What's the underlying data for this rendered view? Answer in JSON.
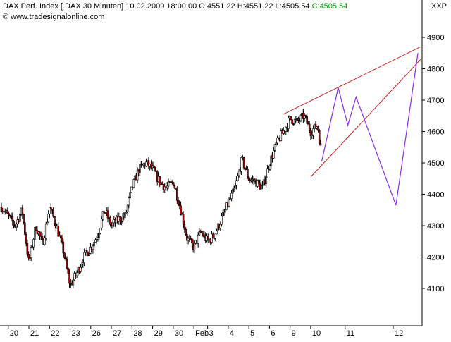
{
  "header": {
    "symbol": "DAX Perf. Index [.DAX",
    "interval": "30 Minuten]",
    "datetime": "10.02.2009 18:00:00",
    "open_label": "O:",
    "open": "4551.22",
    "high_label": "H:",
    "high": "4551.22",
    "low_label": "L:",
    "low": "4505.54",
    "close_label": "C:",
    "close": "4505.54",
    "copyright_symbol": "©",
    "website": "www.tradesignalonline.com",
    "corner_label": "XXP"
  },
  "colors": {
    "candle_up": "#000000",
    "candle_down": "#c00000",
    "trendline": "#d02020",
    "projection": "#8a2be2",
    "close_value": "#00a000"
  },
  "chart_data": {
    "type": "candlestick",
    "title": "DAX Perf. Index [.DAX 30 Minuten]",
    "ylim": [
      4000,
      4950
    ],
    "y_ticks": [
      4100,
      4200,
      4300,
      4400,
      4500,
      4600,
      4700,
      4800,
      4900
    ],
    "x_ticks": [
      "20",
      "21",
      "22",
      "23",
      "26",
      "27",
      "28",
      "29",
      "30",
      "Feb",
      "3",
      "4",
      "5",
      "6",
      "9",
      "10",
      "11",
      "12"
    ],
    "x_tick_positions": [
      0.5,
      2,
      3.5,
      5,
      6.5,
      8,
      9.5,
      11,
      12.5,
      14,
      15,
      16.5,
      18,
      19.5,
      21,
      22.5,
      25,
      28.5
    ],
    "x_range": [
      0,
      30.5
    ],
    "anchors": [
      [
        0,
        4360
      ],
      [
        0.5,
        4330
      ],
      [
        1,
        4300
      ],
      [
        1.5,
        4350
      ],
      [
        2,
        4180
      ],
      [
        2.5,
        4300
      ],
      [
        3,
        4240
      ],
      [
        3.5,
        4360
      ],
      [
        4,
        4300
      ],
      [
        4.5,
        4220
      ],
      [
        5,
        4110
      ],
      [
        5.5,
        4150
      ],
      [
        6,
        4200
      ],
      [
        6.5,
        4230
      ],
      [
        7,
        4270
      ],
      [
        7.5,
        4350
      ],
      [
        8,
        4300
      ],
      [
        8.5,
        4320
      ],
      [
        9,
        4330
      ],
      [
        9.5,
        4420
      ],
      [
        10,
        4480
      ],
      [
        10.5,
        4500
      ],
      [
        11,
        4480
      ],
      [
        11.5,
        4440
      ],
      [
        12,
        4420
      ],
      [
        12.5,
        4440
      ],
      [
        13,
        4360
      ],
      [
        13.5,
        4260
      ],
      [
        14,
        4230
      ],
      [
        14.5,
        4280
      ],
      [
        15,
        4250
      ],
      [
        15.5,
        4270
      ],
      [
        16,
        4320
      ],
      [
        16.5,
        4370
      ],
      [
        17,
        4420
      ],
      [
        17.5,
        4510
      ],
      [
        18,
        4450
      ],
      [
        18.5,
        4440
      ],
      [
        19,
        4420
      ],
      [
        19.5,
        4500
      ],
      [
        20,
        4560
      ],
      [
        20.5,
        4600
      ],
      [
        21,
        4640
      ],
      [
        21.5,
        4630
      ],
      [
        22,
        4650
      ],
      [
        22.5,
        4600
      ],
      [
        23,
        4620
      ],
      [
        23.3,
        4520
      ]
    ],
    "trendlines": [
      {
        "x": [
          20.5,
          30.5
        ],
        "y": [
          4655,
          4870
        ]
      },
      {
        "x": [
          22.5,
          30.5
        ],
        "y": [
          4455,
          4830
        ]
      }
    ],
    "projection": {
      "x": [
        23.3,
        24.5,
        25.2,
        25.8,
        28.7,
        30.3
      ],
      "y": [
        4505,
        4740,
        4620,
        4710,
        4365,
        4850
      ]
    }
  }
}
